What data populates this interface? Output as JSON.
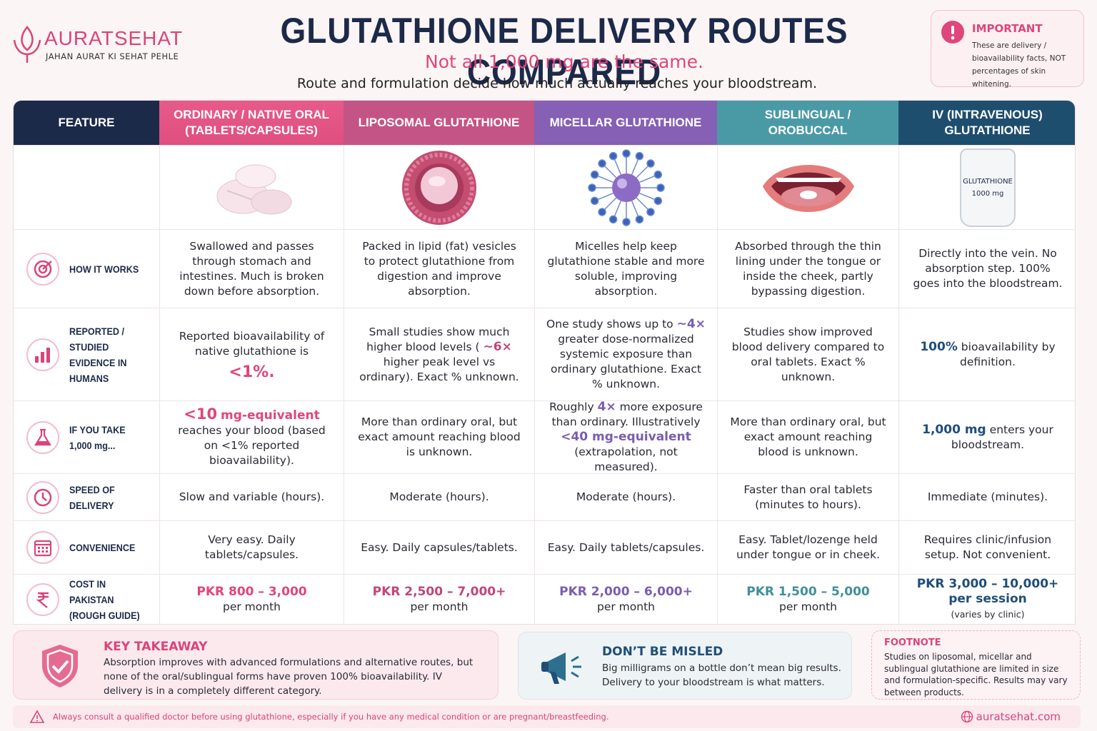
{
  "brand": {
    "name": "AURATSEHAT",
    "tagline": "JAHAN AURAT KI SEHAT PEHLE"
  },
  "header": {
    "title": "GLUTATHIONE DELIVERY ROUTES COMPARED",
    "subtitle": "Not all 1,000 mg are the same.",
    "description": "Route and formulation decide how much actually reaches your bloodstream."
  },
  "notice": {
    "title": "IMPORTANT",
    "text": "These are delivery / bioavailability facts, NOT percentages of skin whitening."
  },
  "table": {
    "header": [
      "FEATURE",
      "ORDINARY / NATIVE ORAL (TABLETS/CAPSULES)",
      "LIPOSOMAL GLUTATHIONE",
      "MICELLAR GLUTATHIONE",
      "SUBLINGUAL / OROBUCCAL",
      "IV (INTRAVENOUS) GLUTATHIONE"
    ],
    "iv_bag_label": [
      "GLUTATHIONE",
      "1000 mg"
    ],
    "rows": [
      {
        "label": "HOW IT WORKS",
        "cells": [
          [
            "Swallowed and passes through stomach and intestines. Much is broken down before absorption."
          ],
          [
            "Packed in lipid (fat) vesicles to protect glutathione from digestion and improve absorption."
          ],
          [
            "Micelles help keep glutathione stable and more soluble, improving absorption."
          ],
          [
            "Absorbed through the thin lining under the tongue or inside the cheek, partly bypassing digestion."
          ],
          [
            "Directly into the vein. No absorption step. 100% goes into the bloodstream."
          ]
        ]
      },
      {
        "label": "REPORTED / STUDIED EVIDENCE IN HUMANS",
        "cells": [
          [
            "Reported bioavailability of native glutathione is",
            "<1%."
          ],
          [
            "Small studies show much higher blood levels (",
            "~6×",
            "higher peak level vs ordinary). Exact % unknown."
          ],
          [
            "One study shows up to",
            "~4×",
            "greater dose-normalized systemic exposure than ordinary glutathione. Exact % unknown."
          ],
          [
            "Studies show improved blood delivery compared to oral tablets. Exact % unknown."
          ],
          [
            "100%",
            "bioavailability by definition."
          ]
        ]
      },
      {
        "label": "IF YOU TAKE 1,000 mg...",
        "cells": [
          [
            "<10",
            "mg-equivalent",
            "reaches your blood (based on <1% reported bioavailability)."
          ],
          [
            "More than ordinary oral, but exact amount reaching blood is unknown."
          ],
          [
            "Roughly",
            "4×",
            "more exposure than ordinary. Illustratively",
            "<40 mg-equivalent",
            "(extrapolation, not measured)."
          ],
          [
            "More than ordinary oral, but exact amount reaching blood is unknown."
          ],
          [
            "1,000 mg",
            "enters your bloodstream."
          ]
        ]
      },
      {
        "label": "SPEED OF DELIVERY",
        "cells": [
          [
            "Slow and variable (hours)."
          ],
          [
            "Moderate (hours)."
          ],
          [
            "Moderate (hours)."
          ],
          [
            "Faster than oral tablets (minutes to hours)."
          ],
          [
            "Immediate (minutes)."
          ]
        ]
      },
      {
        "label": "CONVENIENCE",
        "cells": [
          [
            "Very easy. Daily tablets/capsules."
          ],
          [
            "Easy. Daily capsules/tablets."
          ],
          [
            "Easy. Daily tablets/capsules."
          ],
          [
            "Easy. Tablet/lozenge held under tongue or in cheek."
          ],
          [
            "Requires clinic/infusion setup. Not convenient."
          ]
        ]
      },
      {
        "label": "COST IN PAKISTAN (ROUGH GUIDE)",
        "cells": [
          [
            "PKR 800 – 3,000",
            "per month"
          ],
          [
            "PKR 2,500 – 7,000+",
            "per month"
          ],
          [
            "PKR 2,000 – 6,000+",
            "per month"
          ],
          [
            "PKR 1,500 – 5,000",
            "per month"
          ],
          [
            "PKR 3,000 – 10,000+",
            "per session",
            "(varies by clinic)"
          ]
        ]
      }
    ]
  },
  "takeaway": {
    "title": "KEY TAKEAWAY",
    "text": "Absorption improves with advanced formulations and alternative routes, but none of the oral/sublingual forms have proven 100% bioavailability. IV delivery is in a completely different category."
  },
  "misled": {
    "title": "DON’T BE MISLED",
    "text": "Big milligrams on a bottle don’t mean big results. Delivery to your bloodstream is what matters."
  },
  "footnote": {
    "title": "FOOTNOTE",
    "text": "Studies on liposomal, micellar and sublingual glutathione are limited in size and formulation-specific. Results may vary between products."
  },
  "disclaimer": "Always consult a qualified doctor before using glutathione, especially if you have any medical condition or are pregnant/breastfeeding.",
  "website": "auratsehat.com"
}
